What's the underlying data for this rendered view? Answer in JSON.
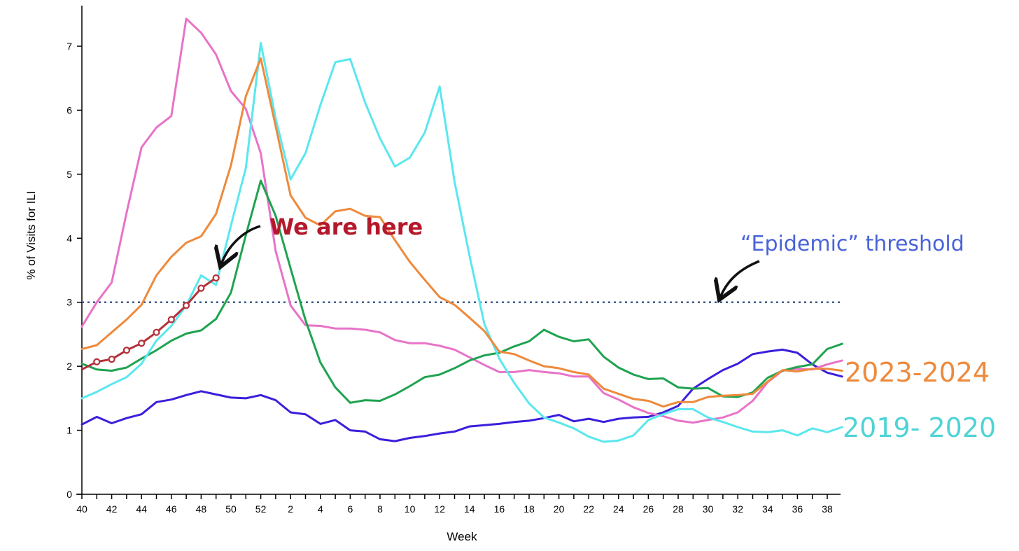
{
  "chart_data": {
    "type": "line",
    "xlabel": "Week",
    "ylabel": "% of Visits for ILI",
    "x_ticks": [
      "40",
      "42",
      "44",
      "46",
      "48",
      "50",
      "52",
      "2",
      "4",
      "6",
      "8",
      "10",
      "12",
      "14",
      "16",
      "18",
      "20",
      "22",
      "24",
      "26",
      "28",
      "30",
      "32",
      "34",
      "36",
      "38"
    ],
    "y_ticks": [
      "0",
      "1",
      "2",
      "3",
      "4",
      "5",
      "6",
      "7"
    ],
    "ylim": [
      0,
      7.6
    ],
    "grid": false,
    "threshold": {
      "value": 3,
      "color": "#3d5a8c"
    },
    "annotations": {
      "here": "We are here",
      "threshold": "“Epidemic” threshold"
    },
    "series": [
      {
        "color": "#3a1fdc",
        "values": [
          1.09,
          1.21,
          1.11,
          1.19,
          1.25,
          1.44,
          1.48,
          1.55,
          1.61,
          1.56,
          1.51,
          1.5,
          1.55,
          1.47,
          1.28,
          1.25,
          1.1,
          1.16,
          1.0,
          0.98,
          0.86,
          0.83,
          0.88,
          0.91,
          0.95,
          0.98,
          1.06,
          1.08,
          1.1,
          1.13,
          1.15,
          1.19,
          1.24,
          1.14,
          1.18,
          1.13,
          1.18,
          1.2,
          1.21,
          1.28,
          1.38,
          1.65,
          1.8,
          1.94,
          2.04,
          2.19,
          2.23,
          2.26,
          2.21,
          2.03,
          1.9,
          1.84
        ]
      },
      {
        "color": "#e873c8",
        "values": [
          2.62,
          3.0,
          3.31,
          4.4,
          5.42,
          5.73,
          5.91,
          7.43,
          7.21,
          6.87,
          6.3,
          6.02,
          5.33,
          3.8,
          2.95,
          2.64,
          2.63,
          2.59,
          2.59,
          2.57,
          2.53,
          2.41,
          2.36,
          2.36,
          2.32,
          2.26,
          2.14,
          2.02,
          1.91,
          1.91,
          1.94,
          1.91,
          1.89,
          1.84,
          1.84,
          1.58,
          1.48,
          1.36,
          1.27,
          1.22,
          1.15,
          1.12,
          1.16,
          1.2,
          1.28,
          1.46,
          1.75,
          1.93,
          1.96,
          1.95,
          2.03,
          2.09
        ]
      },
      {
        "color": "#1fa350",
        "values": [
          2.04,
          1.95,
          1.93,
          1.98,
          2.12,
          2.25,
          2.4,
          2.51,
          2.56,
          2.74,
          3.15,
          4.05,
          4.9,
          4.35,
          3.53,
          2.72,
          2.06,
          1.67,
          1.43,
          1.47,
          1.46,
          1.56,
          1.69,
          1.83,
          1.87,
          1.97,
          2.09,
          2.17,
          2.21,
          2.31,
          2.39,
          2.57,
          2.46,
          2.39,
          2.42,
          2.15,
          1.98,
          1.87,
          1.8,
          1.81,
          1.67,
          1.65,
          1.66,
          1.53,
          1.52,
          1.59,
          1.82,
          1.93,
          1.99,
          2.03,
          2.27,
          2.35
        ]
      },
      {
        "color": "#5be7ee",
        "values": [
          1.5,
          1.6,
          1.72,
          1.83,
          2.04,
          2.4,
          2.63,
          2.95,
          3.42,
          3.27,
          4.2,
          5.1,
          7.05,
          5.87,
          4.92,
          5.33,
          6.08,
          6.75,
          6.8,
          6.12,
          5.56,
          5.12,
          5.26,
          5.65,
          6.37,
          4.88,
          3.73,
          2.66,
          2.12,
          1.74,
          1.42,
          1.2,
          1.12,
          1.03,
          0.9,
          0.82,
          0.84,
          0.92,
          1.16,
          1.25,
          1.33,
          1.33,
          1.2,
          1.13,
          1.05,
          0.98,
          0.97,
          1.0,
          0.92,
          1.03,
          0.97,
          1.05
        ]
      },
      {
        "color": "#ee8a3c",
        "values": [
          2.27,
          2.33,
          2.53,
          2.73,
          2.96,
          3.42,
          3.71,
          3.93,
          4.03,
          4.38,
          5.14,
          6.22,
          6.81,
          5.75,
          4.67,
          4.32,
          4.2,
          4.42,
          4.46,
          4.35,
          4.33,
          3.97,
          3.63,
          3.35,
          3.08,
          2.96,
          2.76,
          2.55,
          2.23,
          2.19,
          2.09,
          2.0,
          1.97,
          1.91,
          1.87,
          1.65,
          1.57,
          1.49,
          1.46,
          1.37,
          1.44,
          1.44,
          1.52,
          1.54,
          1.55,
          1.57,
          1.76,
          1.94,
          1.92,
          1.96,
          1.96,
          1.93
        ]
      }
    ],
    "current_season": {
      "color": "#b5303a",
      "values": [
        1.95,
        2.07,
        2.11,
        2.25,
        2.36,
        2.53,
        2.73,
        2.95,
        3.22,
        3.38
      ]
    },
    "season_labels": [
      {
        "text": "2023-2024",
        "color": "#ee8a3c",
        "value": 1.93
      },
      {
        "text": "2019- 2020",
        "color": "#4fd3d6",
        "value": 1.05
      }
    ]
  }
}
